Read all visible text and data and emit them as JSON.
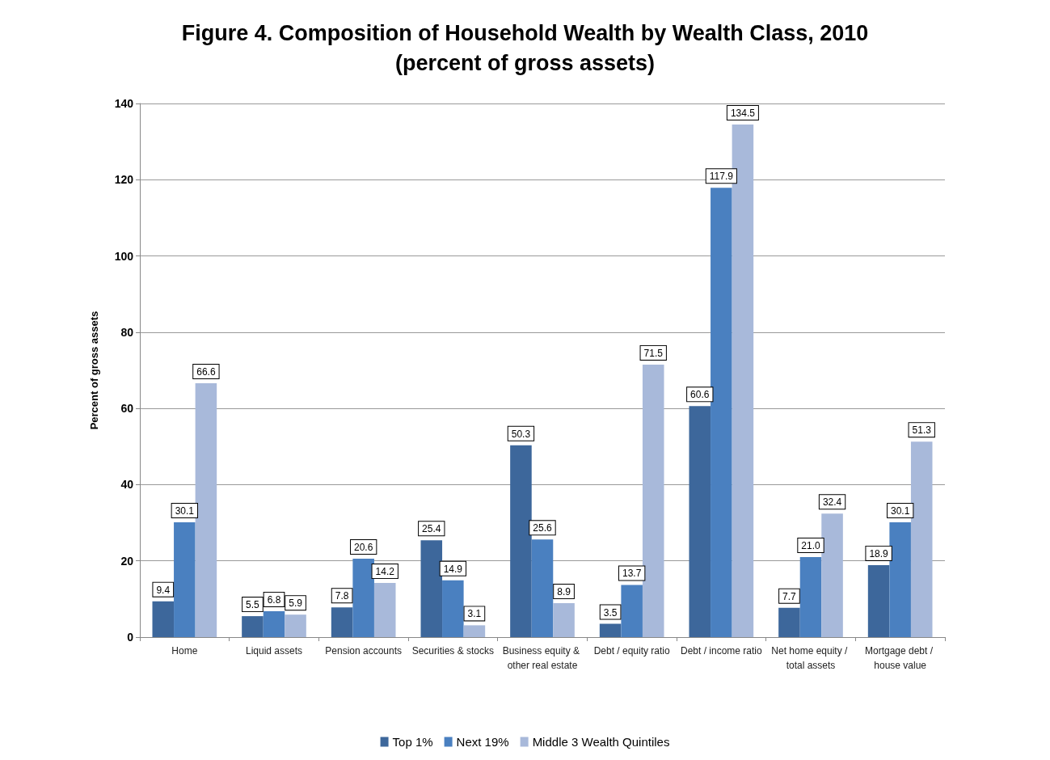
{
  "chart_data": {
    "type": "bar",
    "title": "Figure 4. Composition of Household Wealth by Wealth Class, 2010",
    "subtitle": "(percent of gross assets)",
    "ylabel": "Percent of gross assets",
    "categories": [
      "Home",
      "Liquid assets",
      "Pension accounts",
      "Securities & stocks",
      "Business equity & other real estate",
      "Debt / equity ratio",
      "Debt / income ratio",
      "Net home equity / total assets",
      "Mortgage debt / house value"
    ],
    "series": [
      {
        "name": "Top 1%",
        "color": "#3d679b",
        "values": [
          9.4,
          5.5,
          7.8,
          25.4,
          50.3,
          3.5,
          60.6,
          7.7,
          18.9
        ],
        "value_labels": [
          "9.4",
          "5.5",
          "7.8",
          "25.4",
          "50.3",
          "3.5",
          "60.6",
          "7.7",
          "18.9"
        ]
      },
      {
        "name": "Next 19%",
        "color": "#4a80c0",
        "values": [
          30.1,
          6.8,
          20.6,
          14.9,
          25.6,
          13.7,
          117.9,
          21.0,
          30.1
        ],
        "value_labels": [
          "30.1",
          "6.8",
          "20.6",
          "14.9",
          "25.6",
          "13.7",
          "117.9",
          "21.0",
          "30.1"
        ]
      },
      {
        "name": "Middle 3 Wealth Quintiles",
        "color": "#a8b9da",
        "values": [
          66.6,
          5.9,
          14.2,
          3.1,
          8.9,
          71.5,
          134.5,
          32.4,
          51.3
        ],
        "value_labels": [
          "66.6",
          "5.9",
          "14.2",
          "3.1",
          "8.9",
          "71.5",
          "134.5",
          "32.4",
          "51.3"
        ]
      }
    ],
    "ylim": [
      0,
      140
    ],
    "yticks": [
      0,
      20,
      40,
      60,
      80,
      100,
      120,
      140
    ],
    "grid": "y",
    "legend": "bottom"
  }
}
